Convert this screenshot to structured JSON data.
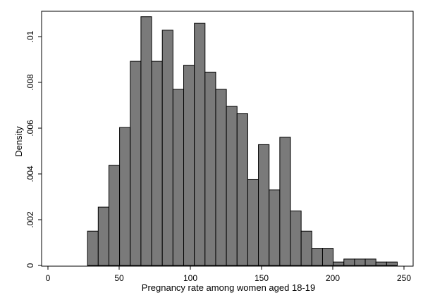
{
  "chart_data": {
    "type": "bar",
    "subtype": "histogram",
    "title": "",
    "xlabel": "Pregnancy rate among women aged 18-19",
    "ylabel": "Density",
    "xlim": [
      0,
      250
    ],
    "ylim": [
      0,
      0.0115
    ],
    "xticks": [
      0,
      50,
      100,
      150,
      200,
      250
    ],
    "xtick_labels": [
      "0",
      "50",
      "100",
      "150",
      "200",
      "250"
    ],
    "yticks": [
      0,
      0.002,
      0.004,
      0.006,
      0.008,
      0.01
    ],
    "ytick_labels": [
      "0",
      ".002",
      ".004",
      ".006",
      ".008",
      ".01"
    ],
    "bin_width": 7.5,
    "bins": [
      {
        "x0": 27.8,
        "density": 0.0015
      },
      {
        "x0": 35.3,
        "density": 0.00255
      },
      {
        "x0": 42.8,
        "density": 0.00438
      },
      {
        "x0": 50.3,
        "density": 0.00603
      },
      {
        "x0": 57.8,
        "density": 0.00892
      },
      {
        "x0": 65.3,
        "density": 0.01087
      },
      {
        "x0": 72.8,
        "density": 0.00892
      },
      {
        "x0": 80.3,
        "density": 0.01028
      },
      {
        "x0": 87.8,
        "density": 0.0077
      },
      {
        "x0": 95.3,
        "density": 0.00875
      },
      {
        "x0": 102.8,
        "density": 0.01058
      },
      {
        "x0": 110.3,
        "density": 0.00845
      },
      {
        "x0": 117.8,
        "density": 0.0077
      },
      {
        "x0": 125.3,
        "density": 0.00695
      },
      {
        "x0": 132.8,
        "density": 0.00663
      },
      {
        "x0": 140.3,
        "density": 0.00377
      },
      {
        "x0": 147.8,
        "density": 0.00528
      },
      {
        "x0": 155.3,
        "density": 0.0033
      },
      {
        "x0": 162.8,
        "density": 0.0056
      },
      {
        "x0": 170.3,
        "density": 0.00238
      },
      {
        "x0": 177.8,
        "density": 0.0015
      },
      {
        "x0": 185.3,
        "density": 0.00075
      },
      {
        "x0": 192.8,
        "density": 0.00075
      },
      {
        "x0": 200.3,
        "density": 0.00015
      },
      {
        "x0": 207.8,
        "density": 0.00028
      },
      {
        "x0": 215.3,
        "density": 0.00028
      },
      {
        "x0": 222.8,
        "density": 0.00028
      },
      {
        "x0": 230.3,
        "density": 0.00015
      },
      {
        "x0": 237.8,
        "density": 0.00015
      }
    ],
    "bar_color": "#7a7a7a",
    "bar_edge_color": "#000000",
    "grid": false,
    "legend": "none"
  }
}
